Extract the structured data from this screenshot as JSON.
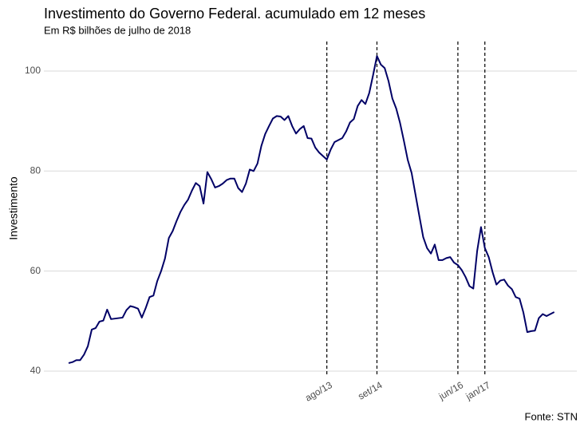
{
  "chart_data": {
    "type": "line",
    "title": "Investimento do Governo Federal. acumulado em 12 meses",
    "subtitle": "Em R$ bilhões de julho de 2018",
    "y_label": "Investimento",
    "caption": "Fonte: STN",
    "categories": [
      null,
      null,
      null,
      null,
      null,
      null,
      null,
      null,
      null,
      null,
      null,
      null,
      null,
      null,
      null,
      null,
      null,
      null,
      null,
      null,
      null,
      null,
      null,
      null,
      null,
      null,
      null,
      null,
      null,
      null,
      null,
      null,
      null,
      null,
      null,
      null,
      null,
      null,
      null,
      null,
      null,
      null,
      null,
      null,
      null,
      null,
      null,
      null,
      null,
      null,
      null,
      null,
      null,
      null,
      null,
      null,
      null,
      null,
      null,
      null,
      null,
      null,
      null,
      null,
      null,
      null,
      null,
      "ago/13",
      null,
      null,
      null,
      null,
      null,
      null,
      null,
      null,
      null,
      null,
      null,
      null,
      "set/14",
      null,
      null,
      null,
      null,
      null,
      null,
      null,
      null,
      null,
      null,
      null,
      null,
      null,
      null,
      null,
      null,
      null,
      null,
      null,
      null,
      "jun/16",
      null,
      null,
      null,
      null,
      null,
      null,
      "jan/17",
      null,
      null,
      null,
      null,
      null,
      null,
      null,
      null,
      null,
      null,
      null,
      null,
      null,
      null,
      null,
      null,
      null,
      null
    ],
    "values": [
      41.6,
      41.8,
      42.2,
      42.2,
      43.3,
      45,
      48.3,
      48.6,
      49.9,
      50.1,
      52.3,
      50.4,
      50.5,
      50.6,
      50.7,
      52.2,
      53,
      52.8,
      52.5,
      50.7,
      52.6,
      54.8,
      55.1,
      58,
      60,
      62.5,
      66.6,
      68,
      70,
      71.8,
      73.2,
      74.3,
      76.1,
      77.6,
      77,
      73.5,
      79.8,
      78.4,
      76.7,
      77,
      77.5,
      78.2,
      78.5,
      78.5,
      76.6,
      75.8,
      77.5,
      80.3,
      80,
      81.5,
      85,
      87.4,
      89,
      90.5,
      91,
      90.9,
      90.2,
      91,
      89,
      87.5,
      88.4,
      89,
      86.6,
      86.5,
      84.7,
      83.7,
      83,
      82.3,
      84.3,
      85.8,
      86.2,
      86.6,
      87.9,
      89.7,
      90.4,
      93,
      94.2,
      93.4,
      95.6,
      99.2,
      103,
      101.3,
      100.6,
      98,
      94.5,
      92.5,
      89.6,
      86,
      82.2,
      79.6,
      75.3,
      71,
      66.8,
      64.6,
      63.5,
      65.3,
      62.2,
      62.2,
      62.6,
      62.8,
      61.7,
      61.2,
      60.2,
      58.8,
      57,
      56.5,
      64,
      68.8,
      64.6,
      62.8,
      59.8,
      57.3,
      58.1,
      58.3,
      57.1,
      56.4,
      54.8,
      54.5,
      51.7,
      47.8,
      48,
      48.1,
      50.6,
      51.4,
      51,
      51.4,
      51.8
    ],
    "color": "#000066",
    "ylim": [
      39.2,
      105.9
    ],
    "yticks": [
      40,
      60,
      80,
      100
    ],
    "grid": true
  }
}
